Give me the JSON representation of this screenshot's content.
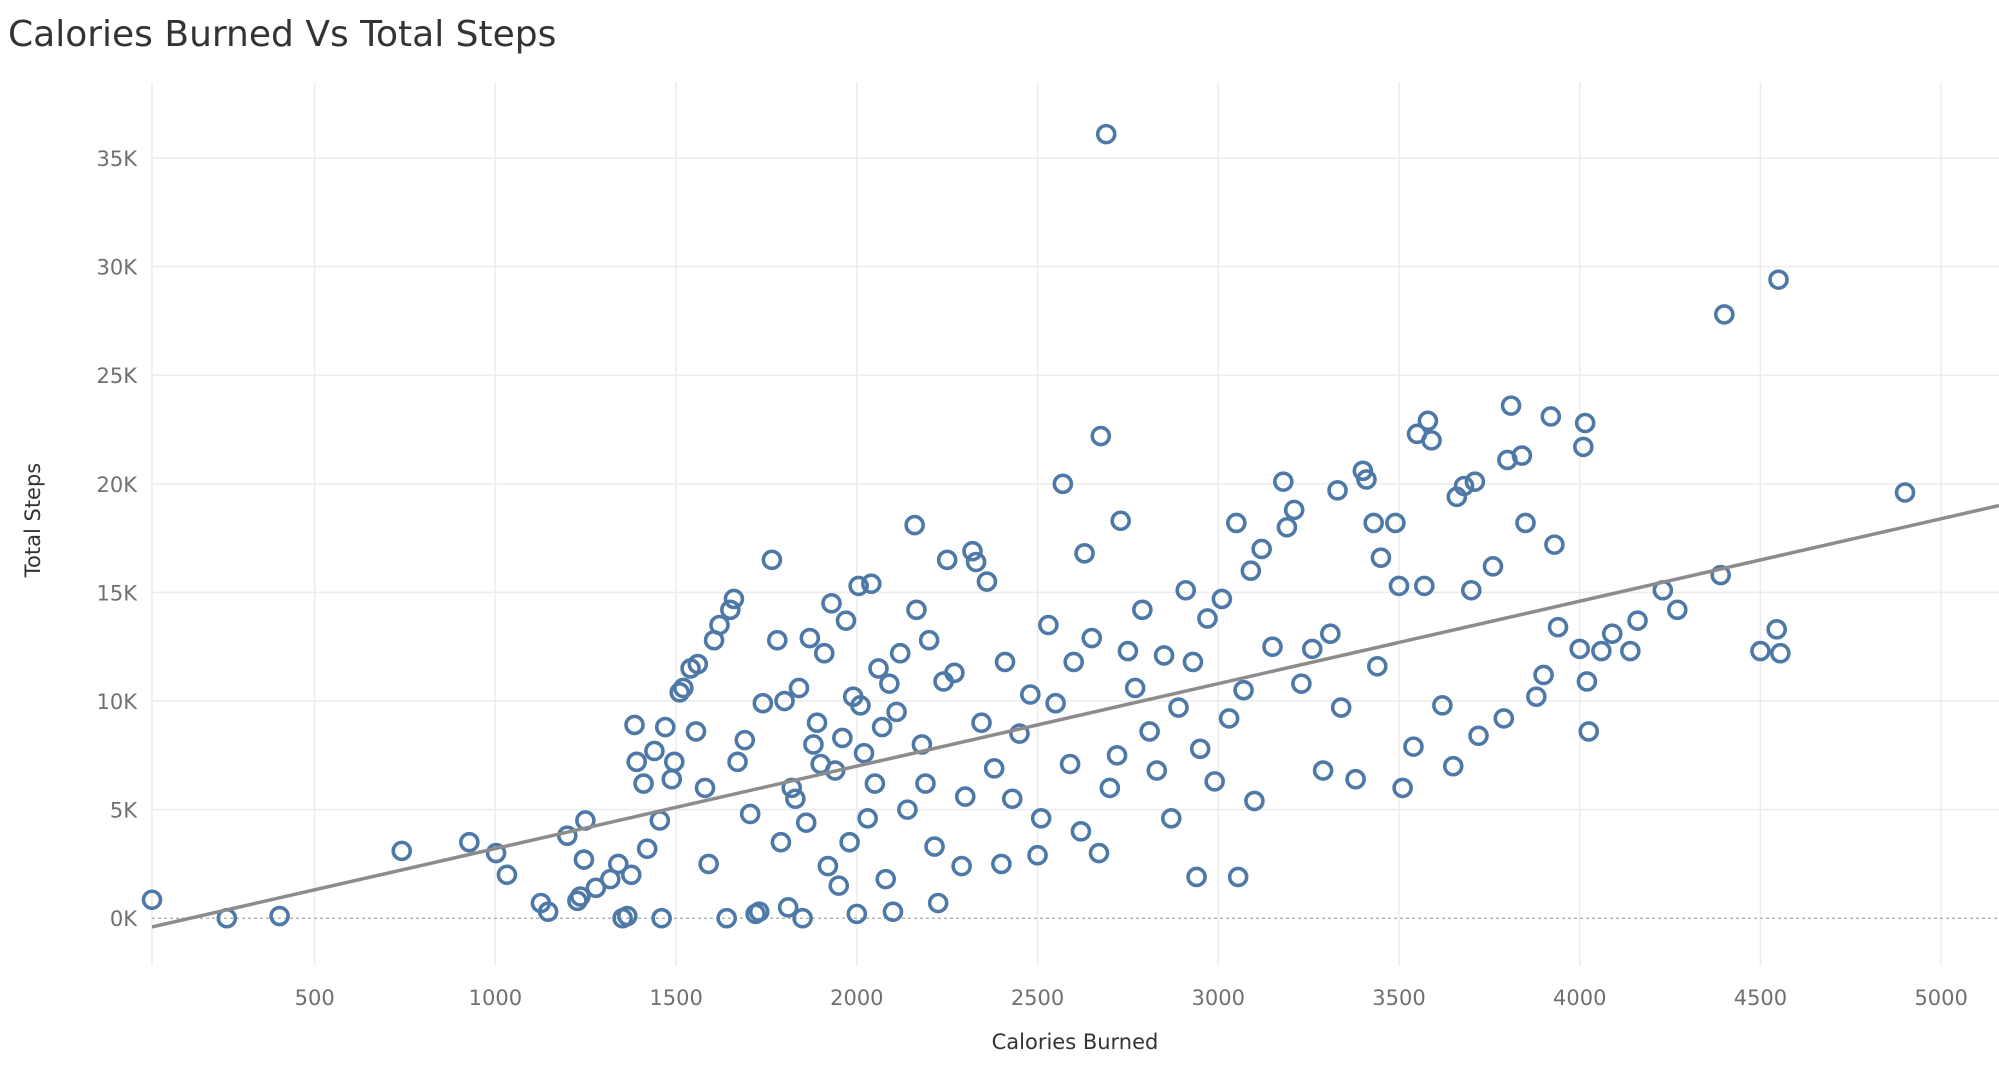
{
  "chart_data": {
    "type": "scatter",
    "title": "Calories Burned Vs Total Steps",
    "xlabel": "Calories Burned",
    "ylabel": "Total Steps",
    "xlim": [
      50,
      5160
    ],
    "ylim": [
      -2200,
      38500
    ],
    "x_ticks": [
      500,
      1000,
      1500,
      2000,
      2500,
      3000,
      3500,
      4000,
      4500,
      5000
    ],
    "x_tick_labels": [
      "500",
      "1000",
      "1500",
      "2000",
      "2500",
      "3000",
      "3500",
      "4000",
      "4500",
      "5000"
    ],
    "y_ticks": [
      0,
      5000,
      10000,
      15000,
      20000,
      25000,
      30000,
      35000
    ],
    "y_tick_labels": [
      "0K",
      "5K",
      "10K",
      "15K",
      "20K",
      "25K",
      "30K",
      "35K"
    ],
    "grid": true,
    "marker_color": "#4e79a7",
    "trend_line": {
      "color": "#8c8c8c",
      "points": [
        [
          50,
          -400
        ],
        [
          5160,
          19000
        ]
      ]
    },
    "points": [
      [
        50,
        850
      ],
      [
        257,
        0
      ],
      [
        403,
        100
      ],
      [
        741,
        3100
      ],
      [
        928,
        3500
      ],
      [
        1002,
        3000
      ],
      [
        1032,
        2000
      ],
      [
        1126,
        700
      ],
      [
        1146,
        300
      ],
      [
        1199,
        3800
      ],
      [
        1227,
        800
      ],
      [
        1235,
        1000
      ],
      [
        1245,
        2700
      ],
      [
        1249,
        4500
      ],
      [
        1278,
        1400
      ],
      [
        1318,
        1800
      ],
      [
        1340,
        2500
      ],
      [
        1352,
        0
      ],
      [
        1365,
        100
      ],
      [
        1376,
        2000
      ],
      [
        1385,
        8900
      ],
      [
        1391,
        7200
      ],
      [
        1410,
        6200
      ],
      [
        1420,
        3200
      ],
      [
        1440,
        7700
      ],
      [
        1455,
        4500
      ],
      [
        1460,
        0
      ],
      [
        1470,
        8800
      ],
      [
        1488,
        6400
      ],
      [
        1495,
        7200
      ],
      [
        1510,
        10400
      ],
      [
        1520,
        10600
      ],
      [
        1540,
        11500
      ],
      [
        1555,
        8600
      ],
      [
        1560,
        11700
      ],
      [
        1580,
        6000
      ],
      [
        1590,
        2500
      ],
      [
        1605,
        12800
      ],
      [
        1620,
        13500
      ],
      [
        1640,
        0
      ],
      [
        1650,
        14200
      ],
      [
        1660,
        14700
      ],
      [
        1670,
        7200
      ],
      [
        1690,
        8200
      ],
      [
        1705,
        4800
      ],
      [
        1720,
        200
      ],
      [
        1730,
        300
      ],
      [
        1740,
        9900
      ],
      [
        1765,
        16500
      ],
      [
        1780,
        12800
      ],
      [
        1790,
        3500
      ],
      [
        1800,
        10000
      ],
      [
        1810,
        500
      ],
      [
        1820,
        6000
      ],
      [
        1830,
        5500
      ],
      [
        1840,
        10600
      ],
      [
        1850,
        0
      ],
      [
        1860,
        4400
      ],
      [
        1870,
        12900
      ],
      [
        1880,
        8000
      ],
      [
        1890,
        9000
      ],
      [
        1900,
        7100
      ],
      [
        1910,
        12200
      ],
      [
        1920,
        2400
      ],
      [
        1930,
        14500
      ],
      [
        1940,
        6800
      ],
      [
        1950,
        1500
      ],
      [
        1960,
        8300
      ],
      [
        1970,
        13700
      ],
      [
        1980,
        3500
      ],
      [
        1990,
        10200
      ],
      [
        2000,
        200
      ],
      [
        2005,
        15300
      ],
      [
        2010,
        9800
      ],
      [
        2020,
        7600
      ],
      [
        2030,
        4600
      ],
      [
        2040,
        15400
      ],
      [
        2050,
        6200
      ],
      [
        2060,
        11500
      ],
      [
        2070,
        8800
      ],
      [
        2080,
        1800
      ],
      [
        2090,
        10800
      ],
      [
        2100,
        300
      ],
      [
        2110,
        9500
      ],
      [
        2120,
        12200
      ],
      [
        2140,
        5000
      ],
      [
        2160,
        18100
      ],
      [
        2165,
        14200
      ],
      [
        2180,
        8000
      ],
      [
        2190,
        6200
      ],
      [
        2200,
        12800
      ],
      [
        2215,
        3300
      ],
      [
        2225,
        700
      ],
      [
        2240,
        10900
      ],
      [
        2250,
        16500
      ],
      [
        2270,
        11300
      ],
      [
        2290,
        2400
      ],
      [
        2300,
        5600
      ],
      [
        2320,
        16900
      ],
      [
        2330,
        16400
      ],
      [
        2345,
        9000
      ],
      [
        2360,
        15500
      ],
      [
        2380,
        6900
      ],
      [
        2400,
        2500
      ],
      [
        2410,
        11800
      ],
      [
        2430,
        5500
      ],
      [
        2450,
        8500
      ],
      [
        2480,
        10300
      ],
      [
        2500,
        2900
      ],
      [
        2510,
        4600
      ],
      [
        2530,
        13500
      ],
      [
        2550,
        9900
      ],
      [
        2570,
        20000
      ],
      [
        2590,
        7100
      ],
      [
        2600,
        11800
      ],
      [
        2620,
        4000
      ],
      [
        2630,
        16800
      ],
      [
        2650,
        12900
      ],
      [
        2670,
        3000
      ],
      [
        2675,
        22200
      ],
      [
        2690,
        36100
      ],
      [
        2700,
        6000
      ],
      [
        2720,
        7500
      ],
      [
        2730,
        18300
      ],
      [
        2750,
        12300
      ],
      [
        2770,
        10600
      ],
      [
        2790,
        14200
      ],
      [
        2810,
        8600
      ],
      [
        2830,
        6800
      ],
      [
        2850,
        12100
      ],
      [
        2870,
        4600
      ],
      [
        2890,
        9700
      ],
      [
        2910,
        15100
      ],
      [
        2930,
        11800
      ],
      [
        2940,
        1900
      ],
      [
        2950,
        7800
      ],
      [
        2970,
        13800
      ],
      [
        2990,
        6300
      ],
      [
        3010,
        14700
      ],
      [
        3030,
        9200
      ],
      [
        3050,
        18200
      ],
      [
        3055,
        1900
      ],
      [
        3070,
        10500
      ],
      [
        3090,
        16000
      ],
      [
        3100,
        5400
      ],
      [
        3120,
        17000
      ],
      [
        3150,
        12500
      ],
      [
        3180,
        20100
      ],
      [
        3190,
        18000
      ],
      [
        3210,
        18800
      ],
      [
        3230,
        10800
      ],
      [
        3260,
        12400
      ],
      [
        3290,
        6800
      ],
      [
        3310,
        13100
      ],
      [
        3330,
        19700
      ],
      [
        3340,
        9700
      ],
      [
        3380,
        6400
      ],
      [
        3400,
        20600
      ],
      [
        3410,
        20200
      ],
      [
        3430,
        18200
      ],
      [
        3440,
        11600
      ],
      [
        3450,
        16600
      ],
      [
        3490,
        18200
      ],
      [
        3500,
        15300
      ],
      [
        3510,
        6000
      ],
      [
        3540,
        7900
      ],
      [
        3550,
        22300
      ],
      [
        3570,
        15300
      ],
      [
        3580,
        22900
      ],
      [
        3590,
        22000
      ],
      [
        3620,
        9800
      ],
      [
        3650,
        7000
      ],
      [
        3660,
        19400
      ],
      [
        3680,
        19900
      ],
      [
        3700,
        15100
      ],
      [
        3710,
        20100
      ],
      [
        3720,
        8400
      ],
      [
        3760,
        16200
      ],
      [
        3790,
        9200
      ],
      [
        3800,
        21100
      ],
      [
        3810,
        23600
      ],
      [
        3840,
        21300
      ],
      [
        3850,
        18200
      ],
      [
        3880,
        10200
      ],
      [
        3900,
        11200
      ],
      [
        3920,
        23100
      ],
      [
        3930,
        17200
      ],
      [
        3940,
        13400
      ],
      [
        4000,
        12400
      ],
      [
        4010,
        21700
      ],
      [
        4015,
        22800
      ],
      [
        4020,
        10900
      ],
      [
        4025,
        8600
      ],
      [
        4060,
        12300
      ],
      [
        4090,
        13100
      ],
      [
        4140,
        12300
      ],
      [
        4160,
        13700
      ],
      [
        4230,
        15100
      ],
      [
        4270,
        14200
      ],
      [
        4390,
        15800
      ],
      [
        4400,
        27800
      ],
      [
        4500,
        12300
      ],
      [
        4545,
        13300
      ],
      [
        4550,
        29400
      ],
      [
        4555,
        12200
      ],
      [
        4900,
        19600
      ]
    ]
  }
}
